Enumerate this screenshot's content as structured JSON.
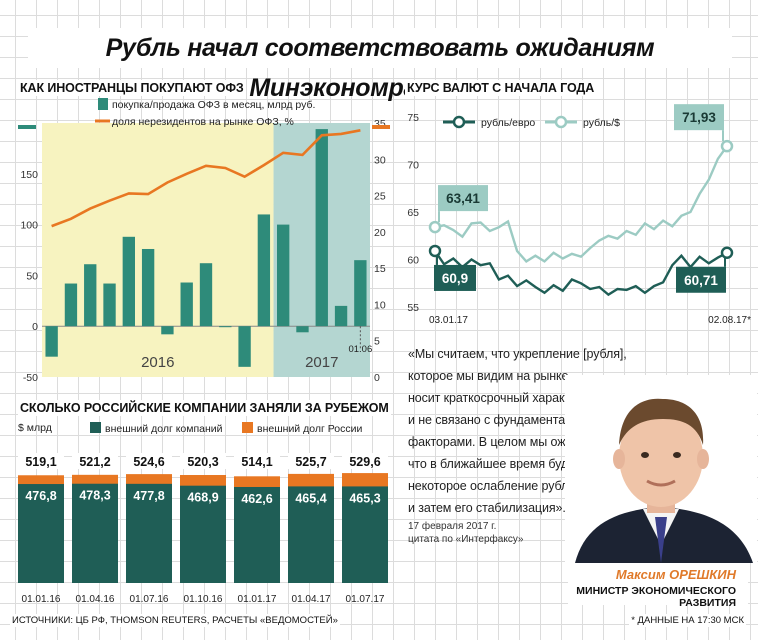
{
  "title": "Рубль начал соответствовать ожиданиям Минэкономразвития",
  "colors": {
    "teal": "#2e8b7a",
    "dark_teal": "#1f5e56",
    "light_teal": "#9ccbc3",
    "orange": "#e87722",
    "yellow_bg": "#f7f3c0",
    "gray_bg": "#b4d6d1"
  },
  "chart_data": [
    {
      "id": "ofz",
      "type": "bar",
      "title": "КАК ИНОСТРАНЦЫ ПОКУПАЮТ ОФЗ",
      "legend": [
        "покупка/продажа ОФЗ в месяц, млрд руб.",
        "доля нерезидентов на рынке ОФЗ, %"
      ],
      "year_labels": [
        "2016",
        "2017"
      ],
      "last_label": "01.06",
      "ylim_left": [
        -50,
        200
      ],
      "left_ticks": [
        "-50",
        "0",
        "50",
        "100",
        "150"
      ],
      "ylim_right": [
        0,
        35
      ],
      "right_ticks": [
        "0",
        "5",
        "10",
        "15",
        "20",
        "25",
        "30",
        "35"
      ],
      "bars": [
        -30,
        42,
        61,
        42,
        88,
        76,
        -8,
        43,
        62,
        0,
        -40,
        110,
        100,
        -6,
        194,
        20,
        65
      ],
      "share": [
        20.8,
        21.8,
        23.2,
        24.3,
        25.3,
        25.2,
        26.8,
        28.0,
        29.1,
        28.8,
        27.6,
        29.2,
        30.9,
        30.6,
        33.3,
        33.5,
        34.0
      ]
    },
    {
      "id": "fx",
      "type": "line",
      "title": "КУРС ВАЛЮТ С НАЧАЛА ГОДА",
      "series_names": [
        "рубль/евро",
        "рубль/$"
      ],
      "ylim": [
        55,
        75
      ],
      "y_ticks": [
        "55",
        "60",
        "65",
        "70",
        "75"
      ],
      "x_labels": [
        "03.01.17",
        "02.08.17*"
      ],
      "callouts": {
        "usd_start": "63,41",
        "usd_end": "71,93",
        "eur_start": "60,9",
        "eur_end": "60,71"
      },
      "usd": [
        63.41,
        63.6,
        63.1,
        62.4,
        63.8,
        63.9,
        63.0,
        63.4,
        64.0,
        60.9,
        59.8,
        60.4,
        59.8,
        60.7,
        60.1,
        60.6,
        60.3,
        61.2,
        62.0,
        62.5,
        62.2,
        63.0,
        62.6,
        63.8,
        63.2,
        64.1,
        63.5,
        64.6,
        65.0,
        66.9,
        68.4,
        70.6,
        71.93
      ],
      "eur": [
        60.9,
        59.5,
        60.1,
        59.2,
        60.0,
        59.4,
        59.6,
        57.9,
        58.3,
        57.2,
        57.8,
        57.1,
        56.5,
        57.3,
        56.7,
        57.9,
        57.5,
        56.9,
        57.1,
        56.3,
        56.9,
        56.8,
        57.2,
        56.5,
        57.2,
        57.6,
        59.4,
        60.4,
        59.2,
        60.3,
        59.6,
        60.2,
        60.71
      ]
    },
    {
      "id": "debt",
      "type": "bar",
      "title": "СКОЛЬКО РОССИЙСКИЕ КОМПАНИИ ЗАНЯЛИ ЗА РУБЕЖОМ",
      "unit": "$ млрд",
      "legend": [
        "внешний долг компаний",
        "внешний долг России"
      ],
      "categories": [
        "01.01.16",
        "01.04.16",
        "01.07.16",
        "01.10.16",
        "01.01.17",
        "01.04.17",
        "01.07.17"
      ],
      "companies": [
        476.8,
        478.3,
        477.8,
        468.9,
        462.6,
        465.4,
        465.3
      ],
      "companies_labels": [
        "476,8",
        "478,3",
        "477,8",
        "468,9",
        "462,6",
        "465,4",
        "465,3"
      ],
      "total": [
        519.1,
        521.2,
        524.6,
        520.3,
        514.1,
        525.7,
        529.6
      ],
      "total_labels": [
        "519,1",
        "521,2",
        "524,6",
        "520,3",
        "514,1",
        "525,7",
        "529,6"
      ]
    }
  ],
  "quote": {
    "lines": [
      "«Мы считаем, что укрепление [рубля],",
      "которое мы видим на рынке,",
      "носит краткосрочный характер",
      "и не связано с фундаментальными",
      "факторами. В целом мы ожидаем,",
      "что в ближайшее время будет",
      "некоторое ослабление рубля",
      "и затем его стабилизация»."
    ],
    "date": "17 февраля 2017 г.",
    "source": "цитата по «Интерфаксу»"
  },
  "person": {
    "name": "Максим ОРЕШКИН",
    "role": "МИНИСТР ЭКОНОМИЧЕСКОГО РАЗВИТИЯ"
  },
  "footer": {
    "sources": "ИСТОЧНИКИ: ЦБ РФ, THOMSON REUTERS, РАСЧЕТЫ «ВЕДОМОСТЕЙ»",
    "note": "* ДАННЫЕ НА 17:30 МСК"
  }
}
